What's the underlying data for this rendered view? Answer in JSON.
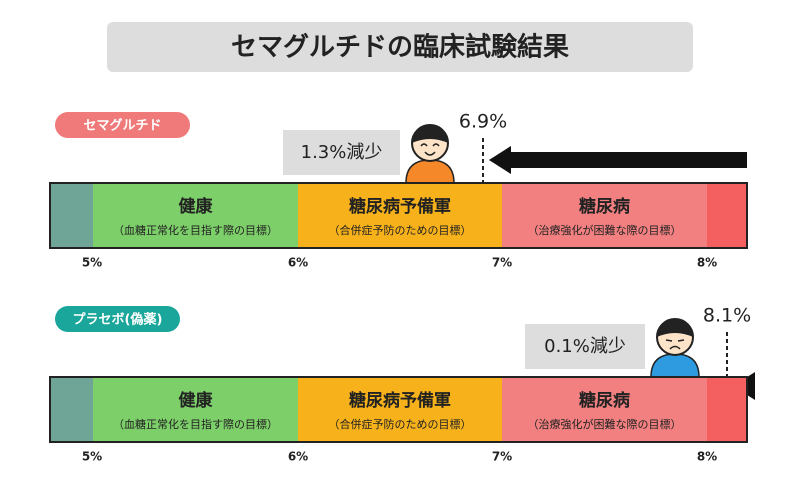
{
  "title": "セマグルチドの臨床試験結果",
  "panels": [
    {
      "label": "セマグルチド",
      "reduction": "1.3%減少",
      "value": "6.9%",
      "zones": [
        {
          "name": "健康",
          "note": "（血糖正常化を目指す際の目標）"
        },
        {
          "name": "糖尿病予備軍",
          "note": "（合併症予防のための目標）"
        },
        {
          "name": "糖尿病",
          "note": "（治療強化が困難な際の目標）"
        }
      ],
      "ticks": [
        "5%",
        "6%",
        "7%",
        "8%"
      ]
    },
    {
      "label": "プラセボ(偽薬)",
      "reduction": "0.1%減少",
      "value": "8.1%",
      "zones": [
        {
          "name": "健康",
          "note": "（血糖正常化を目指す際の目標）"
        },
        {
          "name": "糖尿病予備軍",
          "note": "（合併症予防のための目標）"
        },
        {
          "name": "糖尿病",
          "note": "（治療強化が困難な際の目標）"
        }
      ],
      "ticks": [
        "5%",
        "6%",
        "7%",
        "8%"
      ]
    }
  ]
}
